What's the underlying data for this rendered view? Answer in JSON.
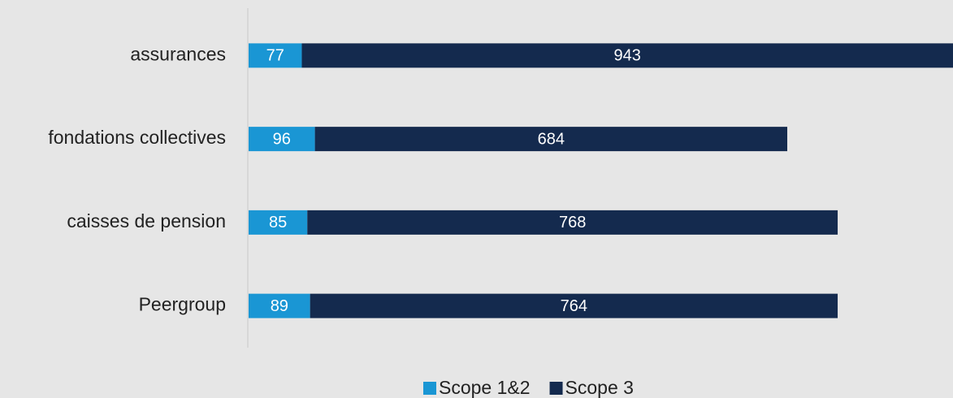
{
  "chart_data": {
    "type": "stacked-barh",
    "categories": [
      "assurances",
      "fondations collectives",
      "caisses de pension",
      "Peergroup"
    ],
    "series": [
      {
        "name": "Scope 1&2",
        "color": "#1a96d4",
        "values": [
          77,
          96,
          85,
          89
        ]
      },
      {
        "name": "Scope 3",
        "color": "#142a4e",
        "values": [
          943,
          684,
          768,
          764
        ]
      }
    ],
    "legend": "bottom"
  }
}
